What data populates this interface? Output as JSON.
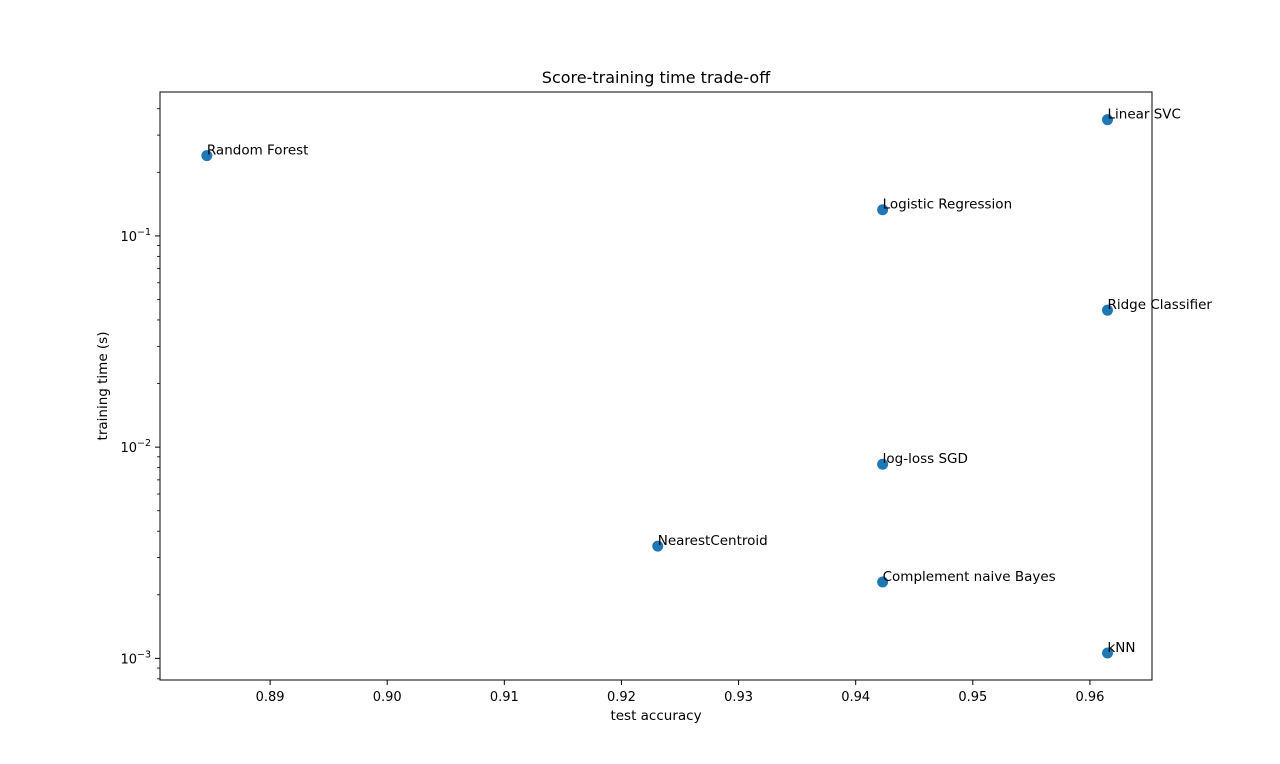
{
  "chart_data": {
    "type": "scatter",
    "title": "Score-training time trade-off",
    "xlabel": "test accuracy",
    "ylabel": "training time (s)",
    "xlim": [
      0.8806,
      0.9653
    ],
    "ylim": [
      0.00079,
      0.48
    ],
    "yscale": "log",
    "grid": false,
    "legend": "none",
    "marker_color": "#1f77b4",
    "x_ticks": [
      {
        "value": 0.89,
        "label": "0.89"
      },
      {
        "value": 0.9,
        "label": "0.90"
      },
      {
        "value": 0.91,
        "label": "0.91"
      },
      {
        "value": 0.92,
        "label": "0.92"
      },
      {
        "value": 0.93,
        "label": "0.93"
      },
      {
        "value": 0.94,
        "label": "0.94"
      },
      {
        "value": 0.95,
        "label": "0.95"
      },
      {
        "value": 0.96,
        "label": "0.96"
      }
    ],
    "y_ticks": [
      {
        "value": 0.001,
        "base": "10",
        "exp": "−3"
      },
      {
        "value": 0.01,
        "base": "10",
        "exp": "−2"
      },
      {
        "value": 0.1,
        "base": "10",
        "exp": "−1"
      }
    ],
    "points": [
      {
        "label": "Random Forest",
        "x": 0.8846,
        "y": 0.24
      },
      {
        "label": "Linear SVC",
        "x": 0.9615,
        "y": 0.355
      },
      {
        "label": "Logistic Regression",
        "x": 0.9423,
        "y": 0.133
      },
      {
        "label": "Ridge Classifier",
        "x": 0.9615,
        "y": 0.0445
      },
      {
        "label": "log-loss SGD",
        "x": 0.9423,
        "y": 0.0083
      },
      {
        "label": "NearestCentroid",
        "x": 0.9231,
        "y": 0.0034
      },
      {
        "label": "Complement naive Bayes",
        "x": 0.9423,
        "y": 0.0023
      },
      {
        "label": "kNN",
        "x": 0.9615,
        "y": 0.00106
      }
    ]
  }
}
